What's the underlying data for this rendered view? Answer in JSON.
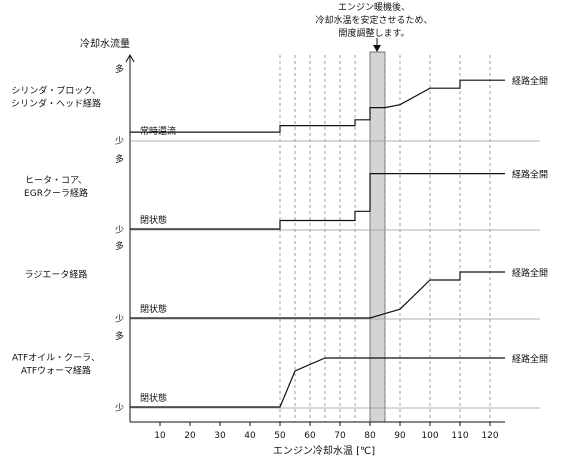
{
  "chart_data": {
    "type": "line",
    "title": "",
    "xlabel": "エンジン冷却水温 [℃]",
    "ylabel": "冷却水流量",
    "xlim": [
      0,
      125
    ],
    "x_ticks": [
      10,
      20,
      30,
      40,
      50,
      60,
      70,
      80,
      90,
      100,
      110,
      120
    ],
    "dashed_x": [
      50,
      55,
      60,
      65,
      70,
      75,
      80,
      85,
      90,
      100,
      110,
      120
    ],
    "level_labels": {
      "high": "多",
      "low": "少"
    },
    "highlight_band": {
      "x": [
        80,
        85
      ],
      "color": "#d4d4d4",
      "annotation": [
        "エンジン暖機後、",
        "冷却水温を安定させるため、",
        "開度調整します。"
      ]
    },
    "panels": [
      {
        "label": [
          "シリンダ・ブロック、",
          "シリンダ・ヘッド経路"
        ],
        "start_text": "常時還流",
        "end_text": "経路全開",
        "series": {
          "x": [
            0,
            50,
            50,
            75,
            75,
            80,
            80,
            85,
            90,
            100,
            110,
            110,
            120
          ],
          "y": [
            0.11,
            0.11,
            0.2,
            0.2,
            0.28,
            0.28,
            0.45,
            0.45,
            0.49,
            0.72,
            0.72,
            0.83,
            0.83
          ]
        }
      },
      {
        "label": [
          "ヒータ・コア、",
          "EGRクーラ経路"
        ],
        "start_text": "閉状態",
        "end_text": "経路全開",
        "series": {
          "x": [
            0,
            50,
            50,
            75,
            75,
            80,
            80,
            85,
            120
          ],
          "y": [
            0,
            0,
            0.12,
            0.12,
            0.25,
            0.25,
            0.78,
            0.78,
            0.78
          ]
        }
      },
      {
        "label": [
          "ラジエータ経路"
        ],
        "start_text": "閉状態",
        "end_text": "経路全開",
        "series": {
          "x": [
            0,
            80,
            90,
            100,
            110,
            110,
            120
          ],
          "y": [
            0,
            0,
            0.12,
            0.52,
            0.52,
            0.63,
            0.63
          ]
        }
      },
      {
        "label": [
          "ATFオイル・クーラ、",
          "ATFウォーマ経路"
        ],
        "start_text": "閉状態",
        "end_text": "経路全開",
        "series": {
          "x": [
            0,
            50,
            55,
            65,
            120
          ],
          "y": [
            0,
            0,
            0.5,
            0.68,
            0.68
          ]
        }
      }
    ],
    "colors": {
      "line": "#111111",
      "guide": "#999999",
      "band": "#d4d4d4"
    }
  }
}
